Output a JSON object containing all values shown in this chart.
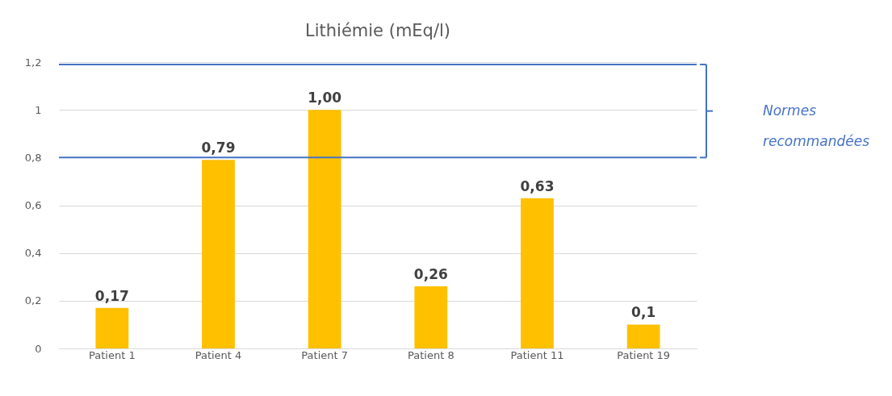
{
  "chart_data": {
    "type": "bar",
    "title": "Lithiémie (mEq/l)",
    "categories": [
      "Patient 1",
      "Patient 4",
      "Patient 7",
      "Patient 8",
      "Patient 11",
      "Patient 19"
    ],
    "values": [
      0.17,
      0.79,
      1.0,
      0.26,
      0.63,
      0.1
    ],
    "value_labels": [
      "0,17",
      "0,79",
      "1,00",
      "0,26",
      "0,63",
      "0,1"
    ],
    "color": "#ffc000",
    "ylim": [
      0,
      1.2
    ],
    "yticks": [
      {
        "value": 0,
        "label": "0"
      },
      {
        "value": 0.2,
        "label": "0,2"
      },
      {
        "value": 0.4,
        "label": "0,4"
      },
      {
        "value": 0.6,
        "label": "0,6"
      },
      {
        "value": 0.8,
        "label": "0,8"
      },
      {
        "value": 1,
        "label": "1"
      },
      {
        "value": 1.2,
        "label": "1,2"
      }
    ],
    "grid": "y",
    "ref_lines": [
      {
        "axis": "y",
        "value": 0.8,
        "label": null,
        "color": "#4472c4"
      },
      {
        "axis": "y",
        "value": 1.19,
        "label": null,
        "color": "#4472c4"
      }
    ],
    "annotations": [
      "Normes recommandées"
    ]
  }
}
